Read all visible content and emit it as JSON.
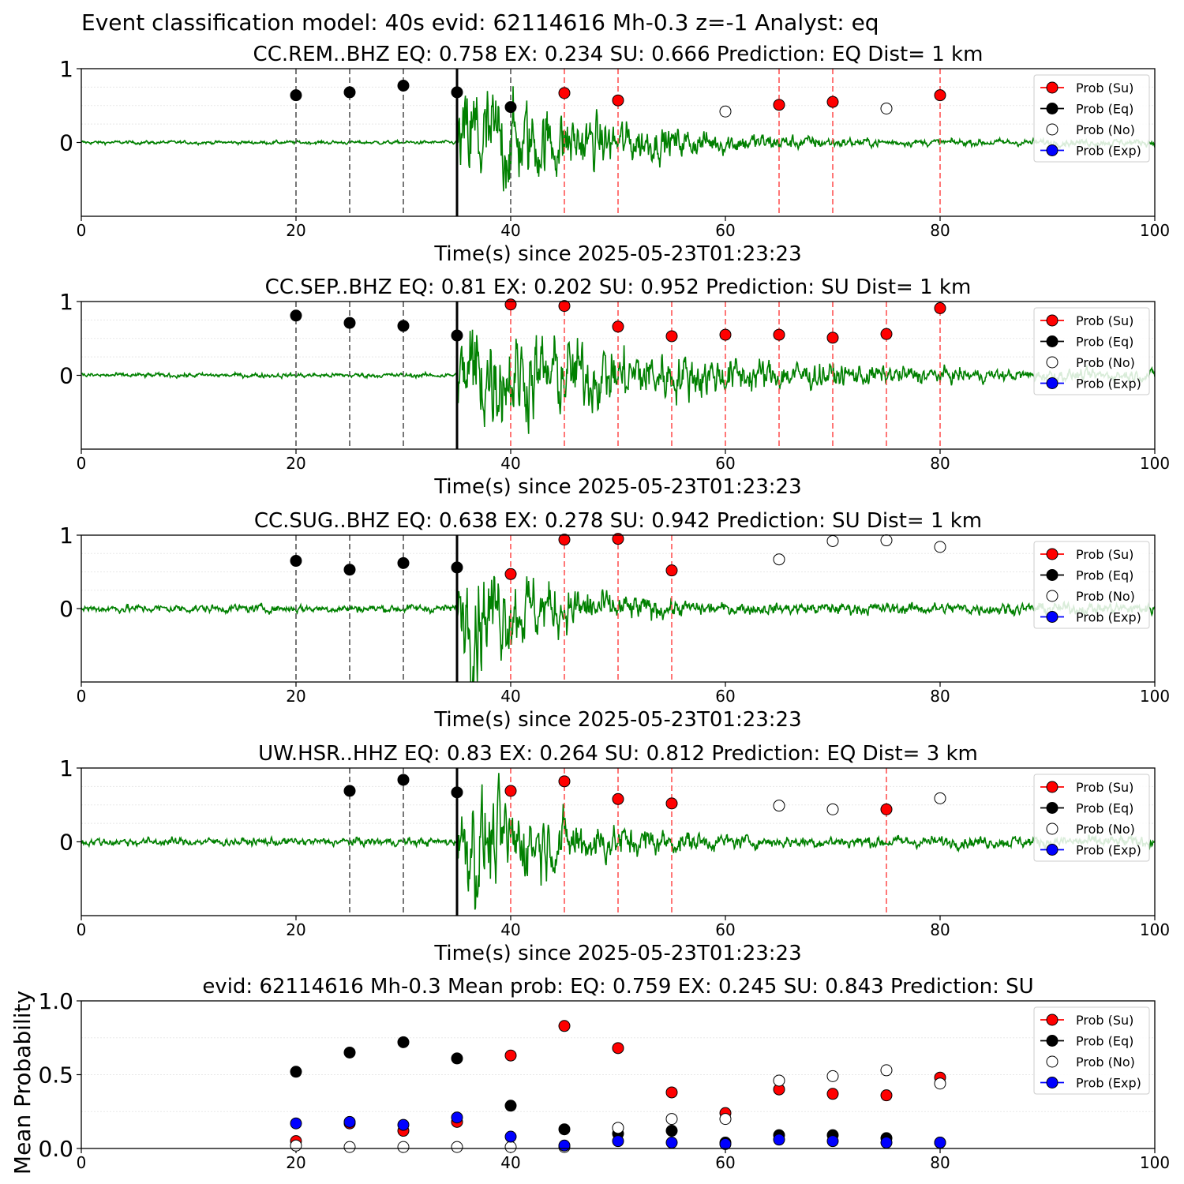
{
  "figure_title": "Event classification model: 40s evid: 62114616 Mh-0.3 z=-1 Analyst: eq",
  "xlabel": "Time(s) since 2025-05-23T01:23:23",
  "legend_labels": [
    "Prob (Su)",
    "Prob (Eq)",
    "Prob (No)",
    "Prob (Exp)"
  ],
  "colors": {
    "trace": "#008000",
    "su": "#ff0000",
    "eq": "#000000",
    "no": "#ffffff",
    "exp": "#0000ff",
    "su_line": "#ff5555",
    "eq_line": "#555555",
    "onset": "#000000"
  },
  "chart_data": [
    {
      "type": "line",
      "title": "CC.REM..BHZ   EQ: 0.758  EX: 0.234  SU: 0.666   Prediction: EQ    Dist= 1 km",
      "xlim": [
        0,
        100
      ],
      "ylim": [
        -1,
        1
      ],
      "xticks": [
        0,
        20,
        40,
        60,
        80,
        100
      ],
      "yticks": [
        "1",
        "0"
      ],
      "onset": 35,
      "waveform": {
        "onset": 35,
        "pre_noise": 0.03,
        "peak": 1.0,
        "decay": 14,
        "floor": 0.06
      },
      "eq_lines": [
        20,
        25,
        30,
        40
      ],
      "su_lines": [
        45,
        50,
        65,
        70,
        80
      ],
      "points": [
        {
          "x": 20,
          "y": 0.64,
          "class": "eq"
        },
        {
          "x": 25,
          "y": 0.68,
          "class": "eq"
        },
        {
          "x": 30,
          "y": 0.77,
          "class": "eq"
        },
        {
          "x": 35,
          "y": 0.68,
          "class": "eq"
        },
        {
          "x": 40,
          "y": 0.48,
          "class": "eq"
        },
        {
          "x": 45,
          "y": 0.67,
          "class": "su"
        },
        {
          "x": 50,
          "y": 0.57,
          "class": "su"
        },
        {
          "x": 60,
          "y": 0.42,
          "class": "no"
        },
        {
          "x": 65,
          "y": 0.51,
          "class": "su"
        },
        {
          "x": 70,
          "y": 0.55,
          "class": "su"
        },
        {
          "x": 75,
          "y": 0.46,
          "class": "no"
        },
        {
          "x": 80,
          "y": 0.64,
          "class": "su"
        }
      ]
    },
    {
      "type": "line",
      "title": "CC.SEP..BHZ   EQ: 0.81  EX: 0.202  SU: 0.952   Prediction: SU    Dist= 1 km",
      "xlim": [
        0,
        100
      ],
      "ylim": [
        -1,
        1
      ],
      "xticks": [
        0,
        20,
        40,
        60,
        80,
        100
      ],
      "yticks": [
        "1",
        "0"
      ],
      "onset": 35,
      "waveform": {
        "onset": 35,
        "pre_noise": 0.04,
        "peak": 0.95,
        "decay": 22,
        "floor": 0.1
      },
      "eq_lines": [
        20,
        25,
        30
      ],
      "su_lines": [
        40,
        45,
        50,
        55,
        60,
        65,
        70,
        75,
        80
      ],
      "points": [
        {
          "x": 20,
          "y": 0.81,
          "class": "eq"
        },
        {
          "x": 25,
          "y": 0.71,
          "class": "eq"
        },
        {
          "x": 30,
          "y": 0.67,
          "class": "eq"
        },
        {
          "x": 35,
          "y": 0.54,
          "class": "eq"
        },
        {
          "x": 40,
          "y": 0.96,
          "class": "su"
        },
        {
          "x": 45,
          "y": 0.94,
          "class": "su"
        },
        {
          "x": 50,
          "y": 0.66,
          "class": "su"
        },
        {
          "x": 55,
          "y": 0.53,
          "class": "su"
        },
        {
          "x": 60,
          "y": 0.55,
          "class": "su"
        },
        {
          "x": 65,
          "y": 0.55,
          "class": "su"
        },
        {
          "x": 70,
          "y": 0.51,
          "class": "su"
        },
        {
          "x": 75,
          "y": 0.56,
          "class": "su"
        },
        {
          "x": 80,
          "y": 0.91,
          "class": "su"
        }
      ]
    },
    {
      "type": "line",
      "title": "CC.SUG..BHZ   EQ: 0.638  EX: 0.278  SU: 0.942   Prediction: SU    Dist= 1 km",
      "xlim": [
        0,
        100
      ],
      "ylim": [
        -1,
        1
      ],
      "xticks": [
        0,
        20,
        40,
        60,
        80,
        100
      ],
      "yticks": [
        "1",
        "0"
      ],
      "onset": 35,
      "waveform": {
        "onset": 35,
        "pre_noise": 0.07,
        "peak": 0.95,
        "decay": 10,
        "floor": 0.1
      },
      "eq_lines": [
        20,
        25,
        30
      ],
      "su_lines": [
        40,
        45,
        50,
        55
      ],
      "points": [
        {
          "x": 20,
          "y": 0.65,
          "class": "eq"
        },
        {
          "x": 25,
          "y": 0.53,
          "class": "eq"
        },
        {
          "x": 30,
          "y": 0.62,
          "class": "eq"
        },
        {
          "x": 35,
          "y": 0.56,
          "class": "eq"
        },
        {
          "x": 40,
          "y": 0.47,
          "class": "su"
        },
        {
          "x": 45,
          "y": 0.94,
          "class": "su"
        },
        {
          "x": 50,
          "y": 0.95,
          "class": "su"
        },
        {
          "x": 55,
          "y": 0.52,
          "class": "su"
        },
        {
          "x": 65,
          "y": 0.67,
          "class": "no"
        },
        {
          "x": 70,
          "y": 0.92,
          "class": "no"
        },
        {
          "x": 75,
          "y": 0.93,
          "class": "no"
        },
        {
          "x": 80,
          "y": 0.84,
          "class": "no"
        }
      ]
    },
    {
      "type": "line",
      "title": "UW.HSR..HHZ   EQ: 0.83  EX: 0.264  SU: 0.812   Prediction: EQ    Dist= 3 km",
      "xlim": [
        0,
        100
      ],
      "ylim": [
        -1,
        1
      ],
      "xticks": [
        0,
        20,
        40,
        60,
        80,
        100
      ],
      "yticks": [
        "1",
        "0"
      ],
      "onset": 35,
      "waveform": {
        "onset": 35,
        "pre_noise": 0.07,
        "peak": 0.9,
        "decay": 12,
        "floor": 0.1
      },
      "eq_lines": [
        25,
        30
      ],
      "su_lines": [
        40,
        45,
        50,
        55,
        75
      ],
      "points": [
        {
          "x": 25,
          "y": 0.69,
          "class": "eq"
        },
        {
          "x": 30,
          "y": 0.84,
          "class": "eq"
        },
        {
          "x": 35,
          "y": 0.67,
          "class": "eq"
        },
        {
          "x": 40,
          "y": 0.69,
          "class": "su"
        },
        {
          "x": 45,
          "y": 0.82,
          "class": "su"
        },
        {
          "x": 50,
          "y": 0.58,
          "class": "su"
        },
        {
          "x": 55,
          "y": 0.52,
          "class": "su"
        },
        {
          "x": 65,
          "y": 0.49,
          "class": "no"
        },
        {
          "x": 70,
          "y": 0.44,
          "class": "no"
        },
        {
          "x": 75,
          "y": 0.44,
          "class": "su"
        },
        {
          "x": 80,
          "y": 0.59,
          "class": "no"
        }
      ]
    },
    {
      "type": "scatter",
      "title": "evid: 62114616  Mh-0.3   Mean prob:   EQ: 0.759  EX: 0.245  SU: 0.843   Prediction: SU",
      "ylabel": "Mean Probability",
      "xlim": [
        0,
        100
      ],
      "ylim": [
        0,
        1
      ],
      "xticks": [
        0,
        20,
        40,
        60,
        80,
        100
      ],
      "yticks": [
        "1.0",
        "0.5",
        "0.0"
      ],
      "x": [
        20,
        25,
        30,
        35,
        40,
        45,
        50,
        55,
        60,
        65,
        70,
        75,
        80
      ],
      "series": [
        {
          "name": "Prob (Su)",
          "class": "su",
          "values": [
            0.05,
            0.17,
            0.12,
            0.18,
            0.63,
            0.83,
            0.68,
            0.38,
            0.24,
            0.4,
            0.37,
            0.36,
            0.48
          ]
        },
        {
          "name": "Prob (Eq)",
          "class": "eq",
          "values": [
            0.52,
            0.65,
            0.72,
            0.61,
            0.29,
            0.13,
            0.1,
            0.12,
            0.04,
            0.09,
            0.09,
            0.07,
            0.04
          ]
        },
        {
          "name": "Prob (No)",
          "class": "no",
          "values": [
            0.02,
            0.01,
            0.01,
            0.01,
            0.01,
            0.01,
            0.14,
            0.2,
            0.2,
            0.46,
            0.49,
            0.53,
            0.44
          ]
        },
        {
          "name": "Prob (Exp)",
          "class": "exp",
          "values": [
            0.17,
            0.18,
            0.16,
            0.21,
            0.08,
            0.02,
            0.05,
            0.04,
            0.03,
            0.06,
            0.05,
            0.04,
            0.04
          ]
        }
      ]
    }
  ]
}
